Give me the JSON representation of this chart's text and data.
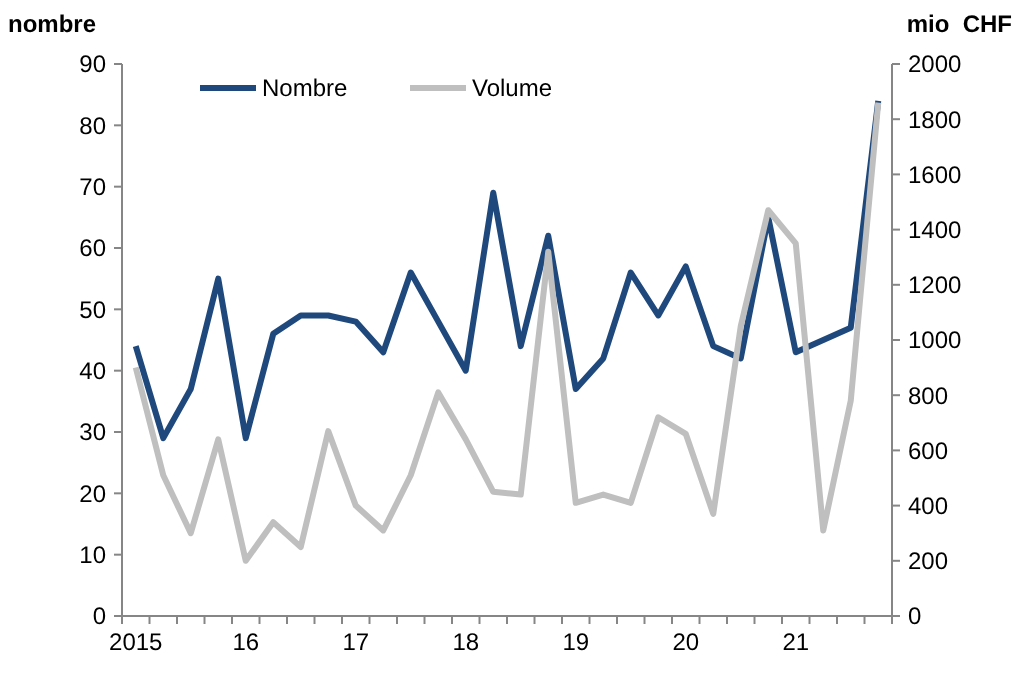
{
  "chart_data": {
    "type": "line",
    "ylabel": "nombre",
    "y2label": "mio  CHF",
    "categories": [
      "2015",
      null,
      null,
      null,
      "16",
      null,
      null,
      null,
      "17",
      null,
      null,
      null,
      "18",
      null,
      null,
      null,
      "19",
      null,
      null,
      null,
      "20",
      null,
      null,
      null,
      "21",
      null,
      null,
      null
    ],
    "ylim": [
      0,
      90
    ],
    "yticks": [
      0,
      10,
      20,
      30,
      40,
      50,
      60,
      70,
      80,
      90
    ],
    "y2lim": [
      0,
      2000
    ],
    "y2ticks": [
      0,
      200,
      400,
      600,
      800,
      1000,
      1200,
      1400,
      1600,
      1800,
      2000
    ],
    "legend": "top",
    "grid": false,
    "series": [
      {
        "name": "Nombre",
        "color": "#1f497d",
        "values": [
          44,
          29,
          37,
          55,
          29,
          46,
          49,
          49,
          48,
          43,
          56,
          48,
          40,
          69,
          44,
          62,
          37,
          42,
          56,
          49,
          57,
          44,
          42,
          65,
          43,
          45,
          47,
          84
        ]
      },
      {
        "name": "Volume",
        "color": "#bfbfbf",
        "axis": "y2",
        "values": [
          900,
          510,
          300,
          640,
          200,
          340,
          250,
          670,
          400,
          310,
          510,
          810,
          640,
          450,
          440,
          1320,
          410,
          440,
          410,
          720,
          660,
          370,
          1050,
          1470,
          1350,
          310,
          780,
          1860
        ]
      }
    ]
  }
}
